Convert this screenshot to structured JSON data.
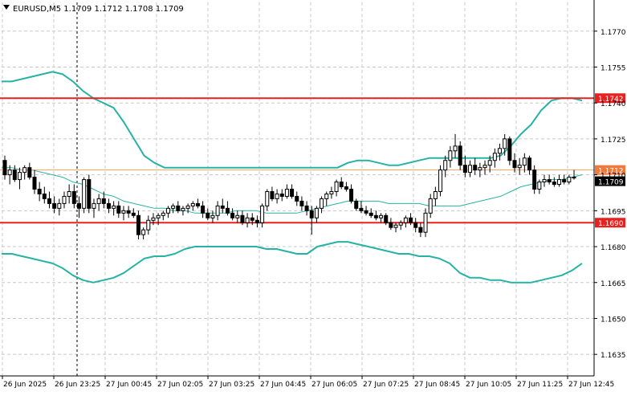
{
  "header": {
    "dropdown_icon": "triangle-down-icon",
    "title": "EURUSD,M5  1.1709 1.1712 1.1708 1.1709"
  },
  "colors": {
    "background": "#ffffff",
    "grid": "#c8c8c8",
    "candle": "#000000",
    "bands": "#26b3a5",
    "level_line": "#e8201e",
    "current_bid_line": "#f0a060",
    "current_bid_tag": "#ef7a3c",
    "axis_text": "#000000"
  },
  "chart_data": {
    "type": "candlestick",
    "symbol": "EURUSD",
    "timeframe": "M5",
    "ohlc_header": {
      "open": 1.1709,
      "high": 1.1712,
      "low": 1.1708,
      "close": 1.1709
    },
    "y_axis": {
      "ylim": [
        1.1626,
        1.1782
      ],
      "ticks": [
        "1.1770",
        "1.1755",
        "1.1740",
        "1.1725",
        "1.1710",
        "1.1695",
        "1.1680",
        "1.1665",
        "1.1650",
        "1.1635"
      ]
    },
    "x_axis": {
      "ticks": [
        "26 Jun 2025",
        "26 Jun 23:25",
        "27 Jun 00:45",
        "27 Jun 02:05",
        "27 Jun 03:25",
        "27 Jun 04:45",
        "27 Jun 06:05",
        "27 Jun 07:25",
        "27 Jun 08:45",
        "27 Jun 10:05",
        "27 Jun 11:25",
        "27 Jun 12:45"
      ]
    },
    "grid": true,
    "period_separator_at": "27 Jun 2025 00:00",
    "horizontal_levels": [
      {
        "label": "1.1742",
        "value": 1.1742,
        "color": "#e8201e"
      },
      {
        "label": "1.1690",
        "value": 1.169,
        "color": "#e8201e"
      }
    ],
    "current_price_markers": [
      {
        "label": "1.1712",
        "value": 1.1712,
        "kind": "line"
      },
      {
        "label": "1.1709",
        "value": 1.1709,
        "kind": "bid"
      }
    ],
    "bollinger_bands": {
      "upper": [
        1.1749,
        1.1749,
        1.175,
        1.1751,
        1.1752,
        1.1753,
        1.1752,
        1.1749,
        1.1745,
        1.1742,
        1.174,
        1.1738,
        1.1732,
        1.1725,
        1.1718,
        1.1715,
        1.1713,
        1.1713,
        1.1713,
        1.1713,
        1.1713,
        1.1713,
        1.1713,
        1.1713,
        1.1713,
        1.1713,
        1.1713,
        1.1713,
        1.1713,
        1.1713,
        1.1713,
        1.1713,
        1.1713,
        1.1713,
        1.1715,
        1.1716,
        1.1716,
        1.1715,
        1.1714,
        1.1714,
        1.1715,
        1.1716,
        1.1717,
        1.1717,
        1.1717,
        1.1717,
        1.1717,
        1.1717,
        1.1717,
        1.1718,
        1.1722,
        1.1727,
        1.1731,
        1.1737,
        1.1741,
        1.1742,
        1.1742,
        1.1741
      ],
      "middle": [
        1.1713,
        1.1713,
        1.1712,
        1.1712,
        1.1711,
        1.171,
        1.1709,
        1.1707,
        1.1706,
        1.1704,
        1.1702,
        1.1701,
        1.1699,
        1.1698,
        1.1697,
        1.1696,
        1.1696,
        1.1695,
        1.1695,
        1.1694,
        1.1694,
        1.1694,
        1.1694,
        1.1695,
        1.1695,
        1.1695,
        1.1694,
        1.1694,
        1.1694,
        1.1694,
        1.1695,
        1.1696,
        1.1697,
        1.1698,
        1.1699,
        1.1699,
        1.1699,
        1.1699,
        1.1698,
        1.1698,
        1.1698,
        1.1698,
        1.1697,
        1.1697,
        1.1697,
        1.1697,
        1.1698,
        1.1699,
        1.17,
        1.1701,
        1.1703,
        1.1705,
        1.1706,
        1.1707,
        1.1708,
        1.1708,
        1.1709,
        1.171
      ],
      "lower": [
        1.1677,
        1.1677,
        1.1676,
        1.1675,
        1.1674,
        1.1673,
        1.1671,
        1.1668,
        1.1666,
        1.1665,
        1.1666,
        1.1667,
        1.1669,
        1.1672,
        1.1675,
        1.1676,
        1.1676,
        1.1677,
        1.1679,
        1.168,
        1.168,
        1.168,
        1.168,
        1.168,
        1.168,
        1.168,
        1.1679,
        1.1679,
        1.1678,
        1.1677,
        1.1677,
        1.168,
        1.1681,
        1.1682,
        1.1682,
        1.1681,
        1.168,
        1.1679,
        1.1678,
        1.1677,
        1.1677,
        1.1676,
        1.1676,
        1.1675,
        1.1673,
        1.1669,
        1.1667,
        1.1667,
        1.1666,
        1.1666,
        1.1665,
        1.1665,
        1.1665,
        1.1666,
        1.1667,
        1.1668,
        1.167,
        1.1673
      ]
    },
    "candles": [
      [
        1.1716,
        1.1718,
        1.1708,
        1.171
      ],
      [
        1.171,
        1.1714,
        1.1706,
        1.1712
      ],
      [
        1.1712,
        1.1714,
        1.1707,
        1.1708
      ],
      [
        1.1708,
        1.1713,
        1.1704,
        1.1711
      ],
      [
        1.1711,
        1.1714,
        1.1708,
        1.1713
      ],
      [
        1.1713,
        1.1715,
        1.1708,
        1.1709
      ],
      [
        1.1709,
        1.1712,
        1.1702,
        1.1704
      ],
      [
        1.1704,
        1.1707,
        1.1699,
        1.1702
      ],
      [
        1.1702,
        1.1705,
        1.1698,
        1.17
      ],
      [
        1.17,
        1.1703,
        1.1696,
        1.1698
      ],
      [
        1.1698,
        1.1701,
        1.1694,
        1.1696
      ],
      [
        1.1696,
        1.17,
        1.1693,
        1.1698
      ],
      [
        1.1698,
        1.1703,
        1.1696,
        1.1701
      ],
      [
        1.1701,
        1.1706,
        1.1698,
        1.1703
      ],
      [
        1.1703,
        1.1706,
        1.1696,
        1.1698
      ],
      [
        1.1698,
        1.1701,
        1.1692,
        1.1696
      ],
      [
        1.1696,
        1.1709,
        1.1694,
        1.1708
      ],
      [
        1.1708,
        1.171,
        1.1694,
        1.1696
      ],
      [
        1.1696,
        1.17,
        1.1692,
        1.1698
      ],
      [
        1.1698,
        1.1702,
        1.1695,
        1.17
      ],
      [
        1.17,
        1.1703,
        1.1696,
        1.1698
      ],
      [
        1.1698,
        1.17,
        1.1694,
        1.1696
      ],
      [
        1.1696,
        1.1699,
        1.1693,
        1.1697
      ],
      [
        1.1697,
        1.1699,
        1.1692,
        1.1694
      ],
      [
        1.1694,
        1.1697,
        1.1691,
        1.1695
      ],
      [
        1.1695,
        1.1697,
        1.1692,
        1.1694
      ],
      [
        1.1694,
        1.1696,
        1.1692,
        1.1693
      ],
      [
        1.1693,
        1.1695,
        1.1683,
        1.1685
      ],
      [
        1.1685,
        1.1688,
        1.1683,
        1.1687
      ],
      [
        1.1687,
        1.1693,
        1.1685,
        1.1691
      ],
      [
        1.1691,
        1.1694,
        1.1689,
        1.1692
      ],
      [
        1.1692,
        1.1694,
        1.1689,
        1.1693
      ],
      [
        1.1693,
        1.1695,
        1.1691,
        1.1694
      ],
      [
        1.1694,
        1.1697,
        1.1692,
        1.1696
      ],
      [
        1.1696,
        1.1698,
        1.1694,
        1.1697
      ],
      [
        1.1697,
        1.1699,
        1.1694,
        1.1695
      ],
      [
        1.1695,
        1.1697,
        1.1693,
        1.1696
      ],
      [
        1.1696,
        1.1698,
        1.1694,
        1.1697
      ],
      [
        1.1697,
        1.1699,
        1.1695,
        1.1698
      ],
      [
        1.1698,
        1.17,
        1.1696,
        1.1697
      ],
      [
        1.1697,
        1.1699,
        1.1692,
        1.1694
      ],
      [
        1.1694,
        1.1696,
        1.1691,
        1.1692
      ],
      [
        1.1692,
        1.1695,
        1.169,
        1.1693
      ],
      [
        1.1693,
        1.1699,
        1.1691,
        1.1697
      ],
      [
        1.1697,
        1.17,
        1.1694,
        1.1696
      ],
      [
        1.1696,
        1.1699,
        1.1693,
        1.1694
      ],
      [
        1.1694,
        1.1696,
        1.1691,
        1.1692
      ],
      [
        1.1692,
        1.1695,
        1.169,
        1.1693
      ],
      [
        1.1693,
        1.1695,
        1.1689,
        1.169
      ],
      [
        1.169,
        1.1694,
        1.1688,
        1.1692
      ],
      [
        1.1692,
        1.1694,
        1.1689,
        1.1691
      ],
      [
        1.1691,
        1.1693,
        1.1688,
        1.169
      ],
      [
        1.169,
        1.1698,
        1.1688,
        1.1697
      ],
      [
        1.1697,
        1.1704,
        1.1695,
        1.1703
      ],
      [
        1.1703,
        1.1705,
        1.1699,
        1.17
      ],
      [
        1.17,
        1.1704,
        1.1698,
        1.1702
      ],
      [
        1.1702,
        1.1704,
        1.1699,
        1.1701
      ],
      [
        1.1701,
        1.1706,
        1.17,
        1.1704
      ],
      [
        1.1704,
        1.1706,
        1.17,
        1.1701
      ],
      [
        1.1701,
        1.1703,
        1.1697,
        1.1699
      ],
      [
        1.1699,
        1.1701,
        1.1695,
        1.1697
      ],
      [
        1.1697,
        1.1699,
        1.1693,
        1.1695
      ],
      [
        1.1695,
        1.1697,
        1.1685,
        1.1692
      ],
      [
        1.1692,
        1.1697,
        1.169,
        1.1696
      ],
      [
        1.1696,
        1.1701,
        1.1694,
        1.17
      ],
      [
        1.17,
        1.1703,
        1.1697,
        1.1702
      ],
      [
        1.1702,
        1.1705,
        1.17,
        1.1703
      ],
      [
        1.1703,
        1.1708,
        1.1701,
        1.1707
      ],
      [
        1.1707,
        1.1709,
        1.1704,
        1.1705
      ],
      [
        1.1705,
        1.1707,
        1.1703,
        1.1704
      ],
      [
        1.1704,
        1.1706,
        1.1698,
        1.1699
      ],
      [
        1.1699,
        1.17,
        1.1695,
        1.1696
      ],
      [
        1.1696,
        1.1699,
        1.1694,
        1.1695
      ],
      [
        1.1695,
        1.1697,
        1.1693,
        1.1694
      ],
      [
        1.1694,
        1.1696,
        1.1692,
        1.1693
      ],
      [
        1.1693,
        1.1695,
        1.1691,
        1.1692
      ],
      [
        1.1692,
        1.1694,
        1.169,
        1.1693
      ],
      [
        1.1693,
        1.1694,
        1.1689,
        1.169
      ],
      [
        1.169,
        1.1692,
        1.1687,
        1.1688
      ],
      [
        1.1688,
        1.169,
        1.1686,
        1.1689
      ],
      [
        1.1689,
        1.1691,
        1.1687,
        1.169
      ],
      [
        1.169,
        1.1693,
        1.1688,
        1.1692
      ],
      [
        1.1692,
        1.1694,
        1.1689,
        1.169
      ],
      [
        1.169,
        1.1692,
        1.1686,
        1.1688
      ],
      [
        1.1688,
        1.169,
        1.1684,
        1.1686
      ],
      [
        1.1686,
        1.1696,
        1.1684,
        1.1694
      ],
      [
        1.1694,
        1.1702,
        1.1692,
        1.17
      ],
      [
        1.17,
        1.1705,
        1.1697,
        1.1703
      ],
      [
        1.1703,
        1.1714,
        1.1701,
        1.1712
      ],
      [
        1.1712,
        1.1718,
        1.1709,
        1.1716
      ],
      [
        1.1716,
        1.1722,
        1.1713,
        1.172
      ],
      [
        1.172,
        1.1727,
        1.1717,
        1.1722
      ],
      [
        1.1722,
        1.1724,
        1.1712,
        1.1714
      ],
      [
        1.1714,
        1.1718,
        1.1709,
        1.1711
      ],
      [
        1.1711,
        1.1716,
        1.1709,
        1.1714
      ],
      [
        1.1714,
        1.1717,
        1.171,
        1.1712
      ],
      [
        1.1712,
        1.1715,
        1.1709,
        1.1713
      ],
      [
        1.1713,
        1.1716,
        1.171,
        1.1714
      ],
      [
        1.1714,
        1.1718,
        1.1711,
        1.1716
      ],
      [
        1.1716,
        1.1721,
        1.1713,
        1.1719
      ],
      [
        1.1719,
        1.1723,
        1.1716,
        1.1721
      ],
      [
        1.1721,
        1.1727,
        1.1718,
        1.1725
      ],
      [
        1.1725,
        1.1726,
        1.1714,
        1.1716
      ],
      [
        1.1716,
        1.1719,
        1.1711,
        1.1713
      ],
      [
        1.1713,
        1.1717,
        1.171,
        1.1714
      ],
      [
        1.1714,
        1.1719,
        1.1711,
        1.1717
      ],
      [
        1.1717,
        1.1718,
        1.171,
        1.1712
      ],
      [
        1.1712,
        1.1714,
        1.1702,
        1.1704
      ],
      [
        1.1704,
        1.1708,
        1.1702,
        1.1707
      ],
      [
        1.1707,
        1.171,
        1.1705,
        1.1708
      ],
      [
        1.1708,
        1.171,
        1.1706,
        1.1707
      ],
      [
        1.1707,
        1.1709,
        1.1705,
        1.1706
      ],
      [
        1.1706,
        1.171,
        1.1705,
        1.1708
      ],
      [
        1.1708,
        1.171,
        1.1706,
        1.1707
      ],
      [
        1.1707,
        1.171,
        1.1706,
        1.1709
      ],
      [
        1.1709,
        1.1712,
        1.1708,
        1.1709
      ]
    ]
  }
}
